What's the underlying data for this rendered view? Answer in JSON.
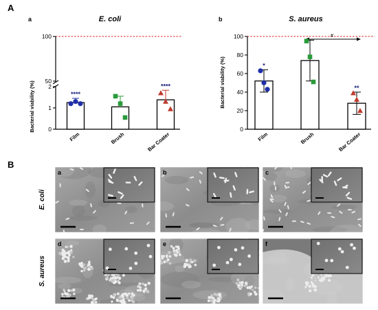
{
  "panel_labels": {
    "A": "A",
    "B": "B"
  },
  "chart_data": [
    {
      "type": "bar",
      "panel": "a",
      "title": "E. coli",
      "ylabel": "Bacterial viability (%)",
      "categories": [
        "Film",
        "Brush",
        "Bar Coater"
      ],
      "values": [
        1.25,
        1.05,
        1.38
      ],
      "errors": [
        0.2,
        0.5,
        0.45
      ],
      "points": [
        [
          1.2,
          1.3,
          1.2
        ],
        [
          1.55,
          1.2,
          0.55
        ],
        [
          1.7,
          1.3,
          0.95
        ]
      ],
      "ylim": [
        0,
        100
      ],
      "y_break": [
        2,
        50
      ],
      "yticks": [
        "0",
        "1",
        "2",
        "50",
        "100"
      ],
      "significance": [
        "****",
        "",
        "****"
      ],
      "point_colors": [
        "#1f2fa8",
        "#2a9a3a",
        "#c0392b"
      ],
      "reference_line": 100,
      "reference_color": "#e02020",
      "grid": false
    },
    {
      "type": "bar",
      "panel": "b",
      "title": "S. aureus",
      "ylabel": "Bacterial viability (%)",
      "categories": [
        "Film",
        "Brush",
        "Bar Coater"
      ],
      "values": [
        52,
        74,
        28
      ],
      "errors": [
        12,
        22,
        12
      ],
      "points": [
        [
          63,
          50,
          43
        ],
        [
          95,
          78,
          51
        ],
        [
          39,
          32,
          20
        ]
      ],
      "ylim": [
        0,
        100
      ],
      "yticks": [
        "0",
        "20",
        "40",
        "60",
        "80",
        "100"
      ],
      "significance": [
        "*",
        "",
        "**"
      ],
      "bracket_label": "#",
      "point_colors": [
        "#1f2fa8",
        "#2a9a3a",
        "#c0392b"
      ],
      "reference_line": 100,
      "reference_color": "#e02020",
      "grid": false
    }
  ],
  "sem": {
    "row_labels": [
      "E. coli",
      "S. aureus"
    ],
    "panels": [
      {
        "letter": "a",
        "organism": "rod"
      },
      {
        "letter": "b",
        "organism": "rod"
      },
      {
        "letter": "c",
        "organism": "rod"
      },
      {
        "letter": "d",
        "organism": "cocci"
      },
      {
        "letter": "e",
        "organism": "cocci"
      },
      {
        "letter": "f",
        "organism": "cocci"
      }
    ]
  }
}
